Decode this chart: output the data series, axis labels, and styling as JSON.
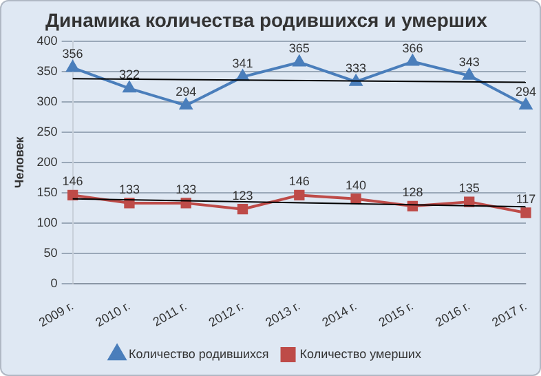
{
  "chart_data": {
    "type": "line",
    "title": "Динамика количества родившихся и умерших",
    "ylabel": "Человек",
    "categories": [
      "2009 г.",
      "2010 г.",
      "2011 г.",
      "2012 г.",
      "2013 г.",
      "2014 г.",
      "2015 г.",
      "2016 г.",
      "2017 г."
    ],
    "series": [
      {
        "name": "Количество родившихся",
        "color": "#4a7ebb",
        "marker": "triangle",
        "values": [
          356,
          322,
          294,
          341,
          365,
          333,
          366,
          343,
          294
        ],
        "value_labels": [
          "356",
          "322",
          "294",
          "341",
          "365",
          "333",
          "366",
          "343",
          "294"
        ]
      },
      {
        "name": "Количество умерших",
        "color": "#be4b48",
        "marker": "square",
        "values": [
          146,
          133,
          133,
          123,
          146,
          140,
          128,
          135,
          117
        ],
        "value_labels": [
          "146",
          "133",
          "133",
          "123",
          "146",
          "140",
          "128",
          "135",
          "117"
        ]
      },
      {
        "type": "line",
        "color": "#000000",
        "marker": "none",
        "x": [
          "2009 г.",
          "2017 г."
        ],
        "values": [
          338,
          332
        ]
      },
      {
        "type": "line",
        "color": "#000000",
        "marker": "none",
        "x": [
          "2009 г.",
          "2017 г."
        ],
        "values": [
          140,
          127
        ]
      }
    ],
    "ylim": [
      0,
      400
    ],
    "yticks": [
      0,
      50,
      100,
      150,
      200,
      250,
      300,
      350,
      400
    ],
    "grid": "y",
    "legend": "bottom"
  }
}
